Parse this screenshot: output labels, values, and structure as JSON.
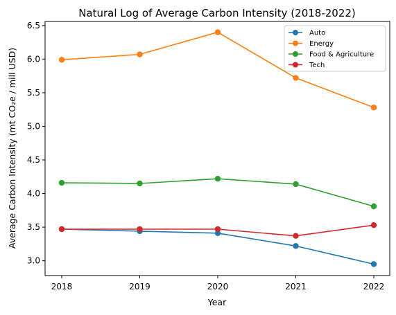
{
  "chart_data": {
    "type": "line",
    "title": "Natural Log of Average Carbon Intensity (2018-2022)",
    "xlabel": "Year",
    "ylabel": "Average Carbon Intensity (mt CO₂e / mill USD)",
    "x": [
      "2018",
      "2019",
      "2020",
      "2021",
      "2022"
    ],
    "ylim": [
      2.78,
      6.56
    ],
    "yticks": [
      "3.0",
      "3.5",
      "4.0",
      "4.5",
      "5.0",
      "5.5",
      "6.0",
      "6.5"
    ],
    "grid": false,
    "legend_position": "top-right",
    "series": [
      {
        "name": "Auto",
        "color": "#1f77b4",
        "values": [
          3.47,
          3.44,
          3.41,
          3.22,
          2.95
        ]
      },
      {
        "name": "Energy",
        "color": "#ff7f0e",
        "values": [
          5.99,
          6.07,
          6.4,
          5.72,
          5.28
        ]
      },
      {
        "name": "Food & Agriculture",
        "color": "#2ca02c",
        "values": [
          4.16,
          4.15,
          4.22,
          4.14,
          3.81
        ]
      },
      {
        "name": "Tech",
        "color": "#d62728",
        "values": [
          3.47,
          3.47,
          3.47,
          3.37,
          3.53
        ]
      }
    ]
  }
}
